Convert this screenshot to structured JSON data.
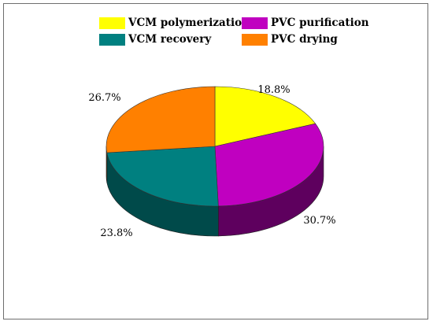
{
  "chart_data": {
    "type": "pie",
    "style": "3d",
    "categories": [
      "VCM polymerization",
      "PVC purification",
      "VCM recovery",
      "PVC drying"
    ],
    "values": [
      18.8,
      30.7,
      23.8,
      26.7
    ],
    "labels": [
      "18.8%",
      "30.7%",
      "23.8%",
      "26.7%"
    ],
    "title": "",
    "legend_position": "top",
    "colors": {
      "VCM polymerization": "#ffff00",
      "PVC purification": "#c000c0",
      "VCM recovery": "#008080",
      "PVC drying": "#ff8000"
    },
    "side_colors": {
      "VCM polymerization": "#9a9a00",
      "PVC purification": "#5e005e",
      "VCM recovery": "#004a4a",
      "PVC drying": "#a05000"
    }
  }
}
